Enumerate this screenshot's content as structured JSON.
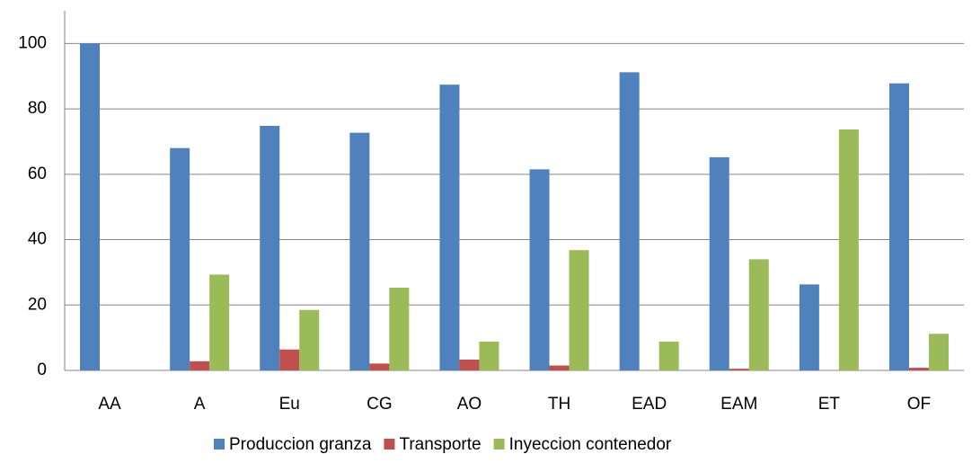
{
  "chart_data": {
    "type": "bar",
    "categories": [
      "AA",
      "A",
      "Eu",
      "CG",
      "AO",
      "TH",
      "EAD",
      "EAM",
      "ET",
      "OF"
    ],
    "series": [
      {
        "name": "Produccion granza",
        "color": "#4f81bd",
        "values": [
          100,
          68,
          74.8,
          72.7,
          87.4,
          61.5,
          91.2,
          65.2,
          26.3,
          87.8
        ]
      },
      {
        "name": "Transporte",
        "color": "#c0504d",
        "values": [
          0,
          2.8,
          6.4,
          2.1,
          3.3,
          1.5,
          0,
          0.5,
          0,
          0.8
        ]
      },
      {
        "name": "Inyeccion contenedor",
        "color": "#9bbb59",
        "values": [
          0,
          29.3,
          18.5,
          25.3,
          8.8,
          36.8,
          8.8,
          34,
          73.7,
          11.2
        ]
      }
    ],
    "ylim": [
      0,
      110
    ],
    "yticks": [
      0,
      20,
      40,
      60,
      80,
      100
    ],
    "grid": true,
    "legend": "bottom"
  }
}
